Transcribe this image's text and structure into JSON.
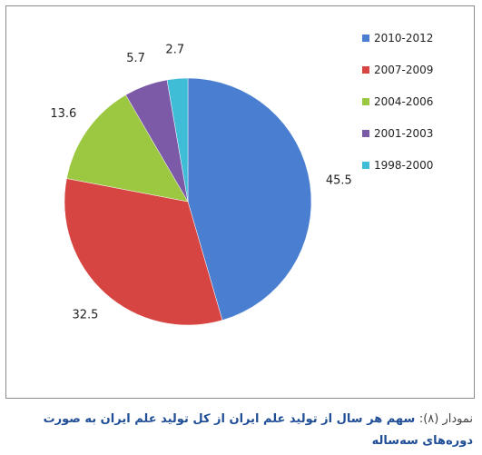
{
  "chart_data": {
    "type": "pie",
    "title": "",
    "categories": [
      "2010-2012",
      "2007-2009",
      "2004-2006",
      "2001-2003",
      "1998-2000"
    ],
    "values": [
      45.5,
      32.5,
      13.6,
      5.7,
      2.7
    ],
    "value_labels": [
      "45.5",
      "32.5",
      "13.6",
      "5.7",
      "2.7"
    ],
    "colors": [
      "#4a7ed0",
      "#d64541",
      "#9bc741",
      "#7d5aa8",
      "#3fbcd6"
    ],
    "start_angle_deg": 0,
    "direction": "clockwise",
    "legend_position": "right"
  },
  "caption": {
    "prefix": "نمودار (۸):",
    "text": "سهم هر سال از تولید علم ایران از کل تولید علم ایران به صورت دوره‌های سه‌ساله"
  }
}
